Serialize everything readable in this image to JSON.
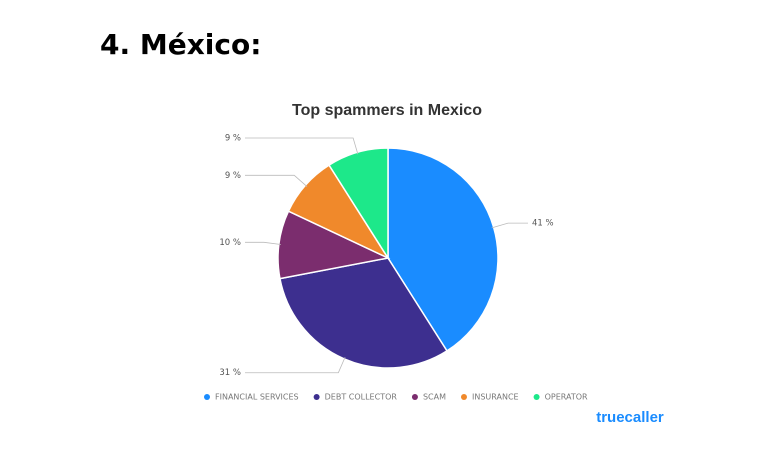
{
  "heading": "4. México:",
  "chart_data": {
    "type": "pie",
    "title": "Top spammers in Mexico",
    "categories": [
      "FINANCIAL SERVICES",
      "DEBT COLLECTOR",
      "SCAM",
      "INSURANCE",
      "OPERATOR"
    ],
    "values": [
      41,
      31,
      10,
      9,
      9
    ],
    "value_labels": [
      "41 %",
      "31 %",
      "10 %",
      "9 %",
      "9 %"
    ],
    "colors": [
      "#1a8cff",
      "#3d2f8f",
      "#7b2d6e",
      "#f0892b",
      "#1de88a"
    ],
    "legend": "bottom"
  },
  "logo": "truecaller"
}
